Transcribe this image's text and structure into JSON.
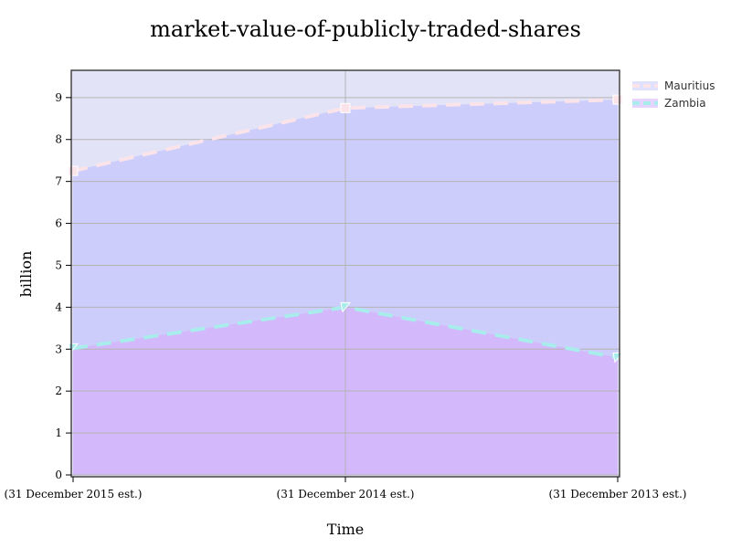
{
  "chart_data": {
    "type": "area",
    "title": "market-value-of-publicly-traded-shares",
    "xlabel": "Time",
    "ylabel": "billion",
    "categories": [
      "(31 December 2015 est.)",
      "(31 December 2014 est.)",
      "(31 December 2013 est.)"
    ],
    "ylim": [
      0,
      9.65
    ],
    "yticks": [
      0,
      1,
      2,
      3,
      4,
      5,
      6,
      7,
      8,
      9
    ],
    "grid": true,
    "legend_position": "top-right",
    "series": [
      {
        "name": "Mauritius",
        "values": [
          7.25,
          8.75,
          8.95
        ],
        "line_color": "#fbe3ea",
        "marker": "square"
      },
      {
        "name": "Zambia",
        "values": [
          3.02,
          4.0,
          2.8
        ],
        "line_color": "#a9ecec",
        "marker": "triangle"
      }
    ],
    "colors": {
      "plot_background": "#e3e3f8",
      "mauritius_fill": "#cccdfb",
      "zambia_fill": "#d3b8fb",
      "grid": "#b4b4b4"
    }
  }
}
